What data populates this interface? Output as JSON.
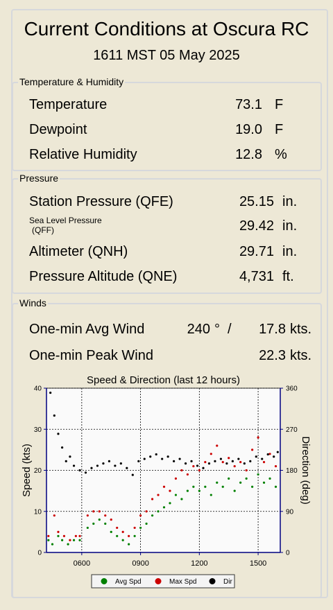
{
  "header": {
    "title": "Current Conditions at Oscura RC",
    "timestamp": "1611 MST 05 May 2025"
  },
  "sections": [
    {
      "title": "Temperature & Humidity",
      "rows": [
        {
          "label": "Temperature",
          "value": "73.1",
          "unit": "F"
        },
        {
          "label": "Dewpoint",
          "value": "19.0",
          "unit": "F"
        },
        {
          "label": "Relative Humidity",
          "value": "12.8",
          "unit": "%"
        }
      ]
    },
    {
      "title": "Pressure",
      "rows": [
        {
          "label": "Station Pressure (QFE)",
          "value": "25.15",
          "unit": "in."
        },
        {
          "label": "Sea Level Pressure",
          "label_sub": "(QFF)",
          "value": "29.42",
          "unit": "in."
        },
        {
          "label": "Altimeter (QNH)",
          "value": "29.71",
          "unit": "in."
        },
        {
          "label": "Pressure Altitude (QNE)",
          "value": "4,731",
          "unit": "ft."
        }
      ]
    },
    {
      "title": "Winds",
      "rows": [
        {
          "label": "One-min Avg Wind",
          "direction": "240",
          "direction_unit": "°",
          "separator": "/",
          "value": "17.8",
          "unit": "kts."
        },
        {
          "label": "One-min Peak Wind",
          "value": "22.3",
          "unit": "kts."
        }
      ]
    }
  ],
  "chart_data": {
    "type": "scatter",
    "title": "Speed & Direction (last 12 hours)",
    "y_label": "Speed (kts)",
    "y2_label": "Direction (deg)",
    "xlim": [
      4.2,
      16.13
    ],
    "xticks": [
      {
        "value": 6,
        "label": "0600"
      },
      {
        "value": 9,
        "label": "0900"
      },
      {
        "value": 12,
        "label": "1200"
      },
      {
        "value": 15,
        "label": "1500"
      }
    ],
    "ylim": [
      0,
      40
    ],
    "yticks": [
      0,
      10,
      20,
      30,
      40
    ],
    "y2lim": [
      0,
      360
    ],
    "y2ticks": [
      0,
      90,
      180,
      270,
      360
    ],
    "grid": true,
    "series": [
      {
        "name": "Avg Spd",
        "color": "#008000",
        "x": [
          4.3,
          4.5,
          4.8,
          5.0,
          5.3,
          5.6,
          5.9,
          6.3,
          6.6,
          6.9,
          7.2,
          7.5,
          7.8,
          8.1,
          8.4,
          8.7,
          9.0,
          9.3,
          9.6,
          9.9,
          10.2,
          10.5,
          10.8,
          11.1,
          11.4,
          11.7,
          12.0,
          12.3,
          12.6,
          12.9,
          13.2,
          13.5,
          13.8,
          14.1,
          14.4,
          14.7,
          15.0,
          15.3,
          15.6,
          15.9
        ],
        "values": [
          3,
          2,
          4,
          3,
          2,
          3,
          3,
          6,
          7,
          8,
          7,
          5,
          4,
          3,
          2,
          4,
          6,
          7,
          9,
          10,
          11,
          12,
          14,
          13,
          15,
          16,
          15,
          16,
          14,
          17,
          16,
          18,
          15,
          17,
          18,
          16,
          19,
          17,
          18,
          16
        ]
      },
      {
        "name": "Max Spd",
        "color": "#cc0000",
        "x": [
          4.3,
          4.6,
          4.8,
          5.1,
          5.4,
          5.7,
          5.9,
          6.3,
          6.6,
          6.9,
          7.2,
          7.5,
          7.8,
          8.1,
          8.4,
          8.7,
          9.0,
          9.3,
          9.6,
          9.9,
          10.2,
          10.5,
          10.8,
          11.1,
          11.4,
          11.7,
          12.0,
          12.3,
          12.6,
          12.9,
          13.2,
          13.5,
          13.8,
          14.1,
          14.4,
          14.7,
          15.0,
          15.3,
          15.6,
          15.9
        ],
        "values": [
          4,
          9,
          5,
          4,
          3,
          4,
          4,
          9,
          10,
          10,
          9,
          8,
          6,
          5,
          4,
          6,
          9,
          10,
          13,
          14,
          16,
          15,
          18,
          20,
          19,
          21,
          20,
          22,
          24,
          26,
          22,
          23,
          21,
          22,
          20,
          25,
          28,
          22,
          24,
          21
        ]
      },
      {
        "name": "Dir",
        "color": "#000000",
        "axis": "y2",
        "x": [
          4.4,
          4.6,
          4.8,
          5.0,
          5.2,
          5.4,
          5.6,
          5.9,
          6.2,
          6.5,
          6.8,
          7.1,
          7.4,
          7.7,
          8.0,
          8.3,
          8.6,
          8.9,
          9.2,
          9.5,
          9.8,
          10.1,
          10.4,
          10.7,
          11.0,
          11.3,
          11.6,
          11.9,
          12.2,
          12.5,
          12.8,
          13.1,
          13.4,
          13.7,
          14.0,
          14.3,
          14.6,
          14.9,
          15.2,
          15.5,
          15.8,
          16.0
        ],
        "values": [
          350,
          300,
          260,
          230,
          200,
          210,
          190,
          180,
          175,
          185,
          190,
          195,
          200,
          190,
          195,
          185,
          170,
          200,
          205,
          210,
          215,
          205,
          210,
          200,
          205,
          195,
          200,
          190,
          185,
          195,
          200,
          205,
          195,
          200,
          205,
          195,
          200,
          210,
          205,
          215,
          210,
          220
        ]
      }
    ]
  }
}
